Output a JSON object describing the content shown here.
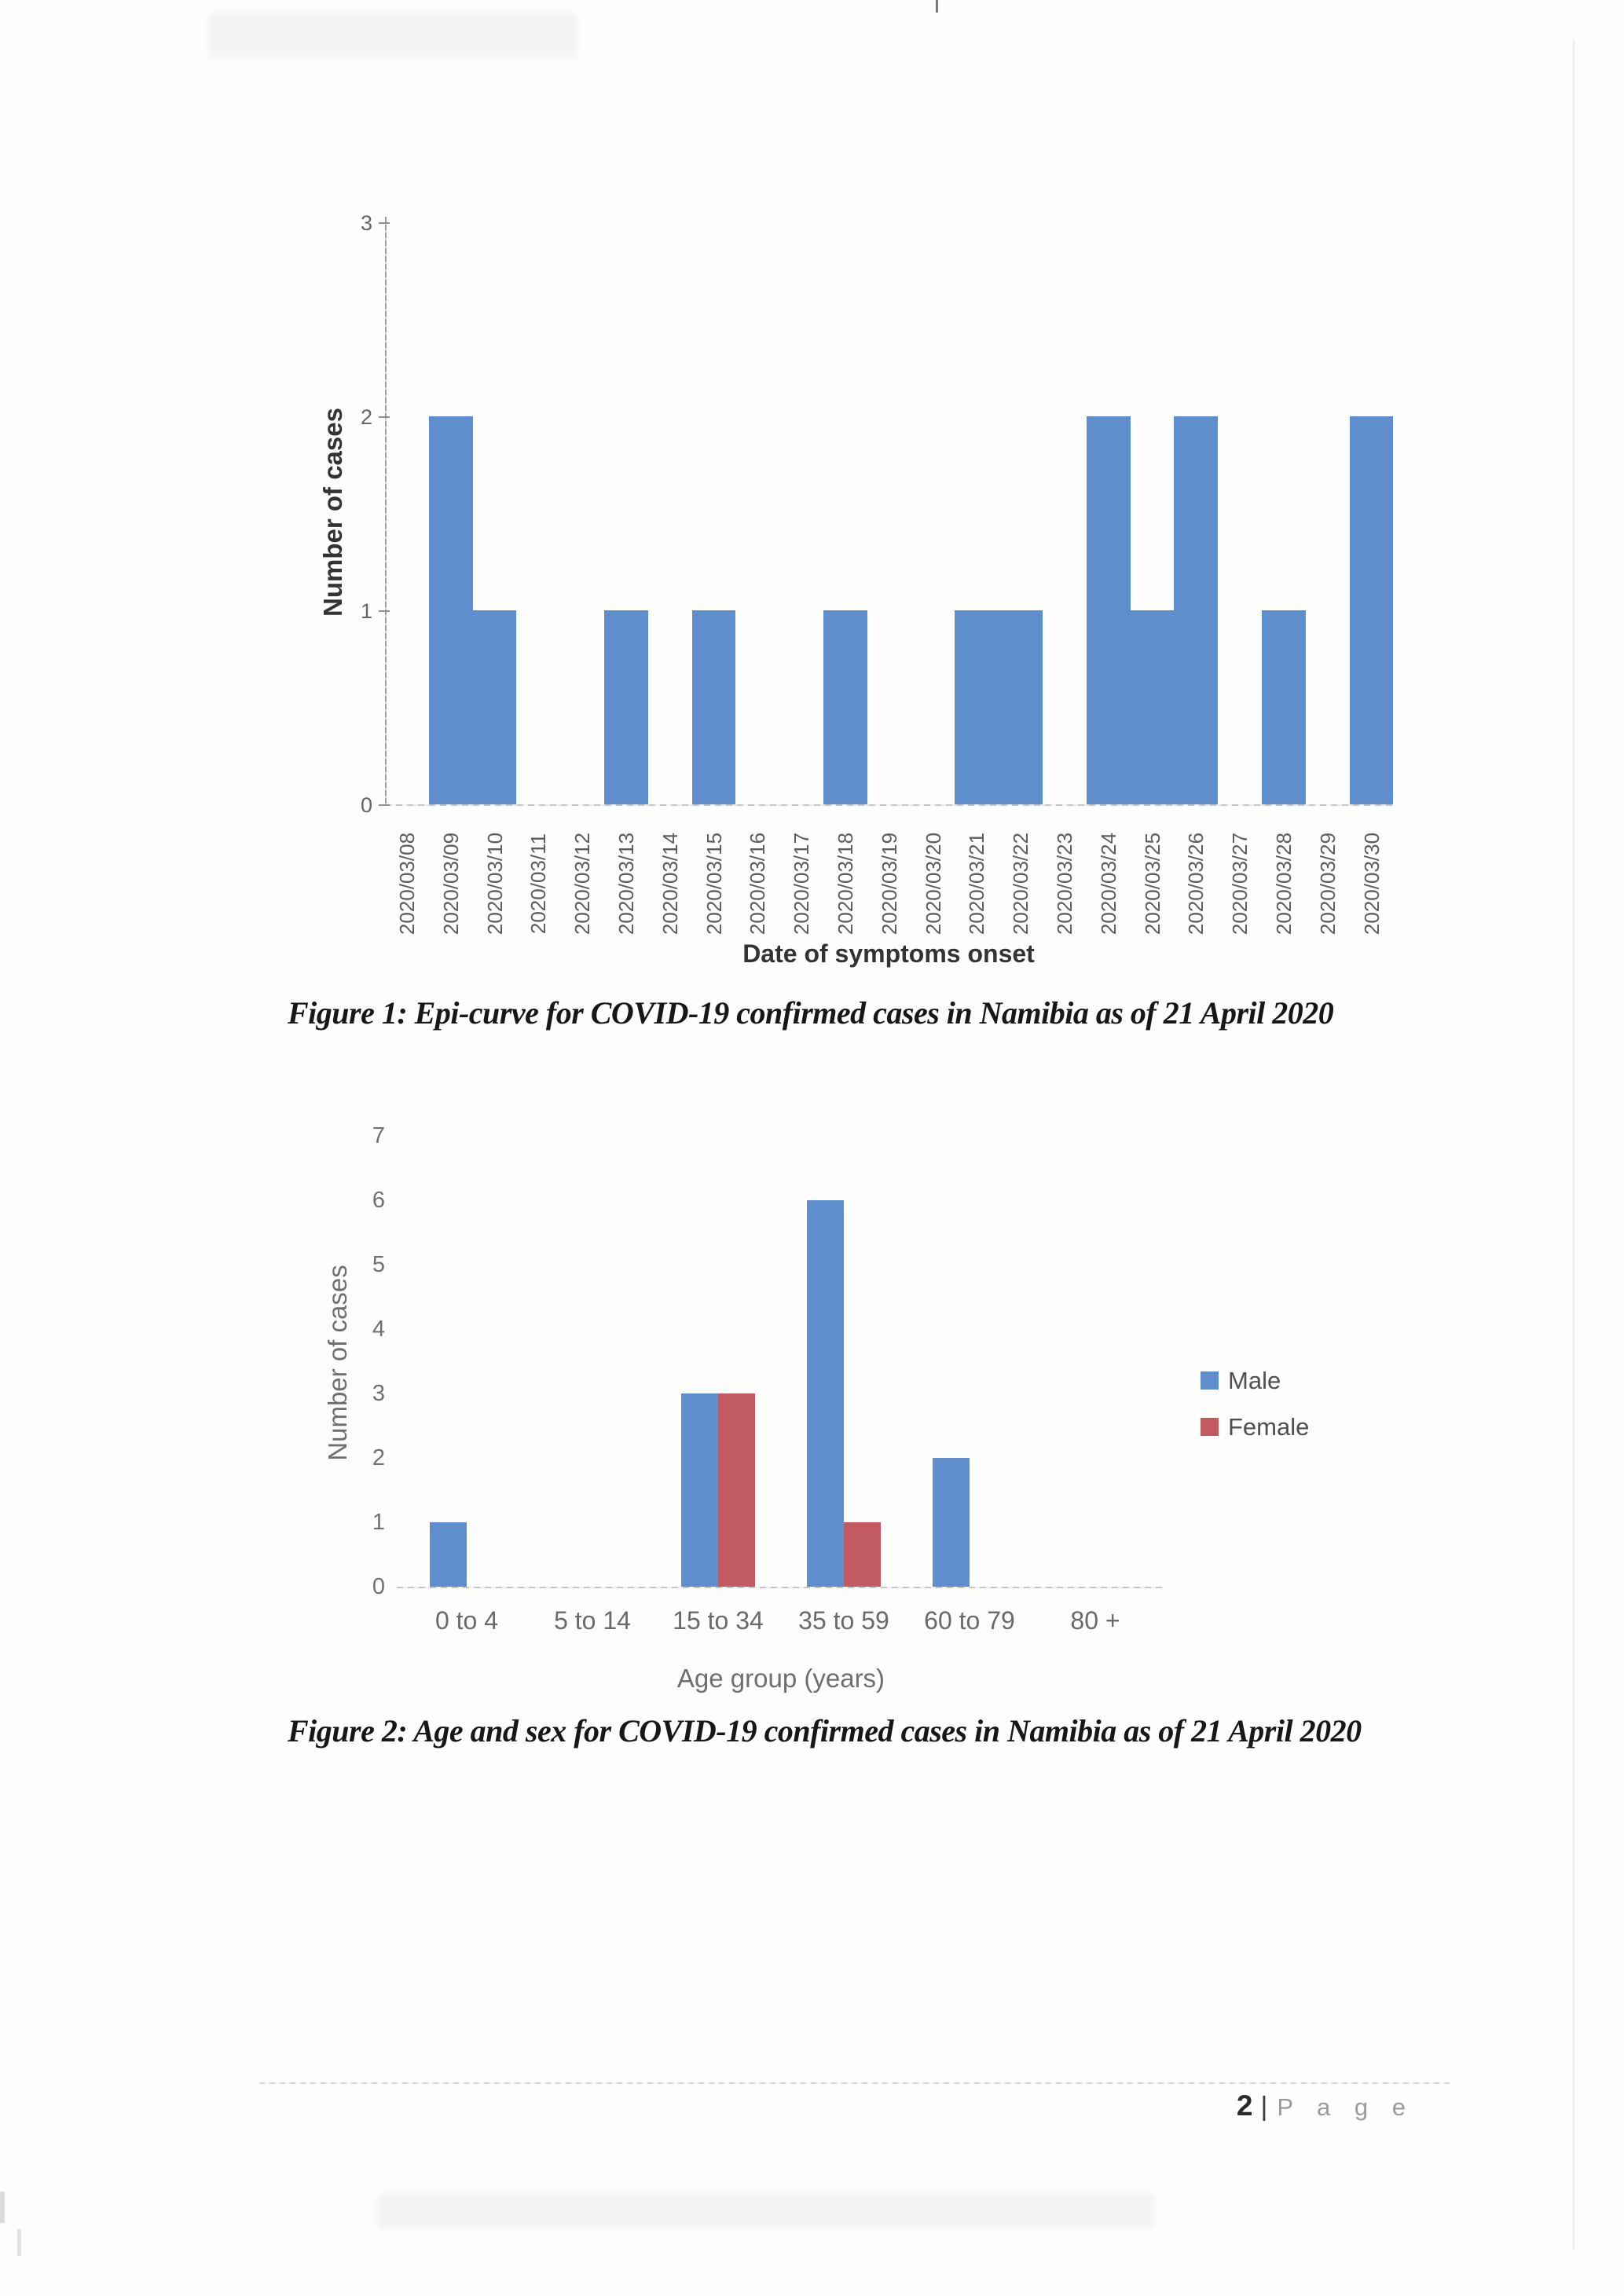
{
  "footer": {
    "page_number": "2",
    "separator": "|",
    "label": "P a g e"
  },
  "chart_data": [
    {
      "id": "figure-1",
      "type": "bar",
      "title": "",
      "categories": [
        "2020/03/08",
        "2020/03/09",
        "2020/03/10",
        "2020/03/11",
        "2020/03/12",
        "2020/03/13",
        "2020/03/14",
        "2020/03/15",
        "2020/03/16",
        "2020/03/17",
        "2020/03/18",
        "2020/03/19",
        "2020/03/20",
        "2020/03/21",
        "2020/03/22",
        "2020/03/23",
        "2020/03/24",
        "2020/03/25",
        "2020/03/26",
        "2020/03/27",
        "2020/03/28",
        "2020/03/29",
        "2020/03/30"
      ],
      "series": [
        {
          "name": "Cases",
          "color": "#5f8ecd",
          "values": [
            0,
            2,
            1,
            0,
            0,
            1,
            0,
            1,
            0,
            0,
            1,
            0,
            0,
            1,
            1,
            0,
            2,
            1,
            2,
            0,
            1,
            0,
            2
          ]
        }
      ],
      "xlabel": "Date of symptoms onset",
      "ylabel": "Number of cases",
      "ylim": [
        0,
        3
      ],
      "yticks": [
        0,
        1,
        2,
        3
      ],
      "grid": "off",
      "legend": "none",
      "bar_gap": 0,
      "caption": "Figure 1: Epi-curve for COVID-19 confirmed cases in Namibia as of 21 April 2020"
    },
    {
      "id": "figure-2",
      "type": "bar",
      "title": "",
      "categories": [
        "0 to 4",
        "5 to 14",
        "15 to 34",
        "35 to 59",
        "60 to 79",
        "80 +"
      ],
      "series": [
        {
          "name": "Male",
          "color": "#5f8ecd",
          "values": [
            1,
            0,
            3,
            6,
            2,
            0
          ]
        },
        {
          "name": "Female",
          "color": "#c25a62",
          "values": [
            0,
            0,
            3,
            1,
            0,
            0
          ]
        }
      ],
      "xlabel": "Age group (years)",
      "ylabel": "Number of cases",
      "ylim": [
        0,
        7
      ],
      "yticks": [
        0,
        1,
        2,
        3,
        4,
        5,
        6,
        7
      ],
      "grid": "off",
      "legend": {
        "position": "right",
        "entries": [
          "Male",
          "Female"
        ]
      },
      "caption": "Figure 2: Age and sex for COVID-19 confirmed cases in Namibia as of 21 April 2020"
    }
  ]
}
